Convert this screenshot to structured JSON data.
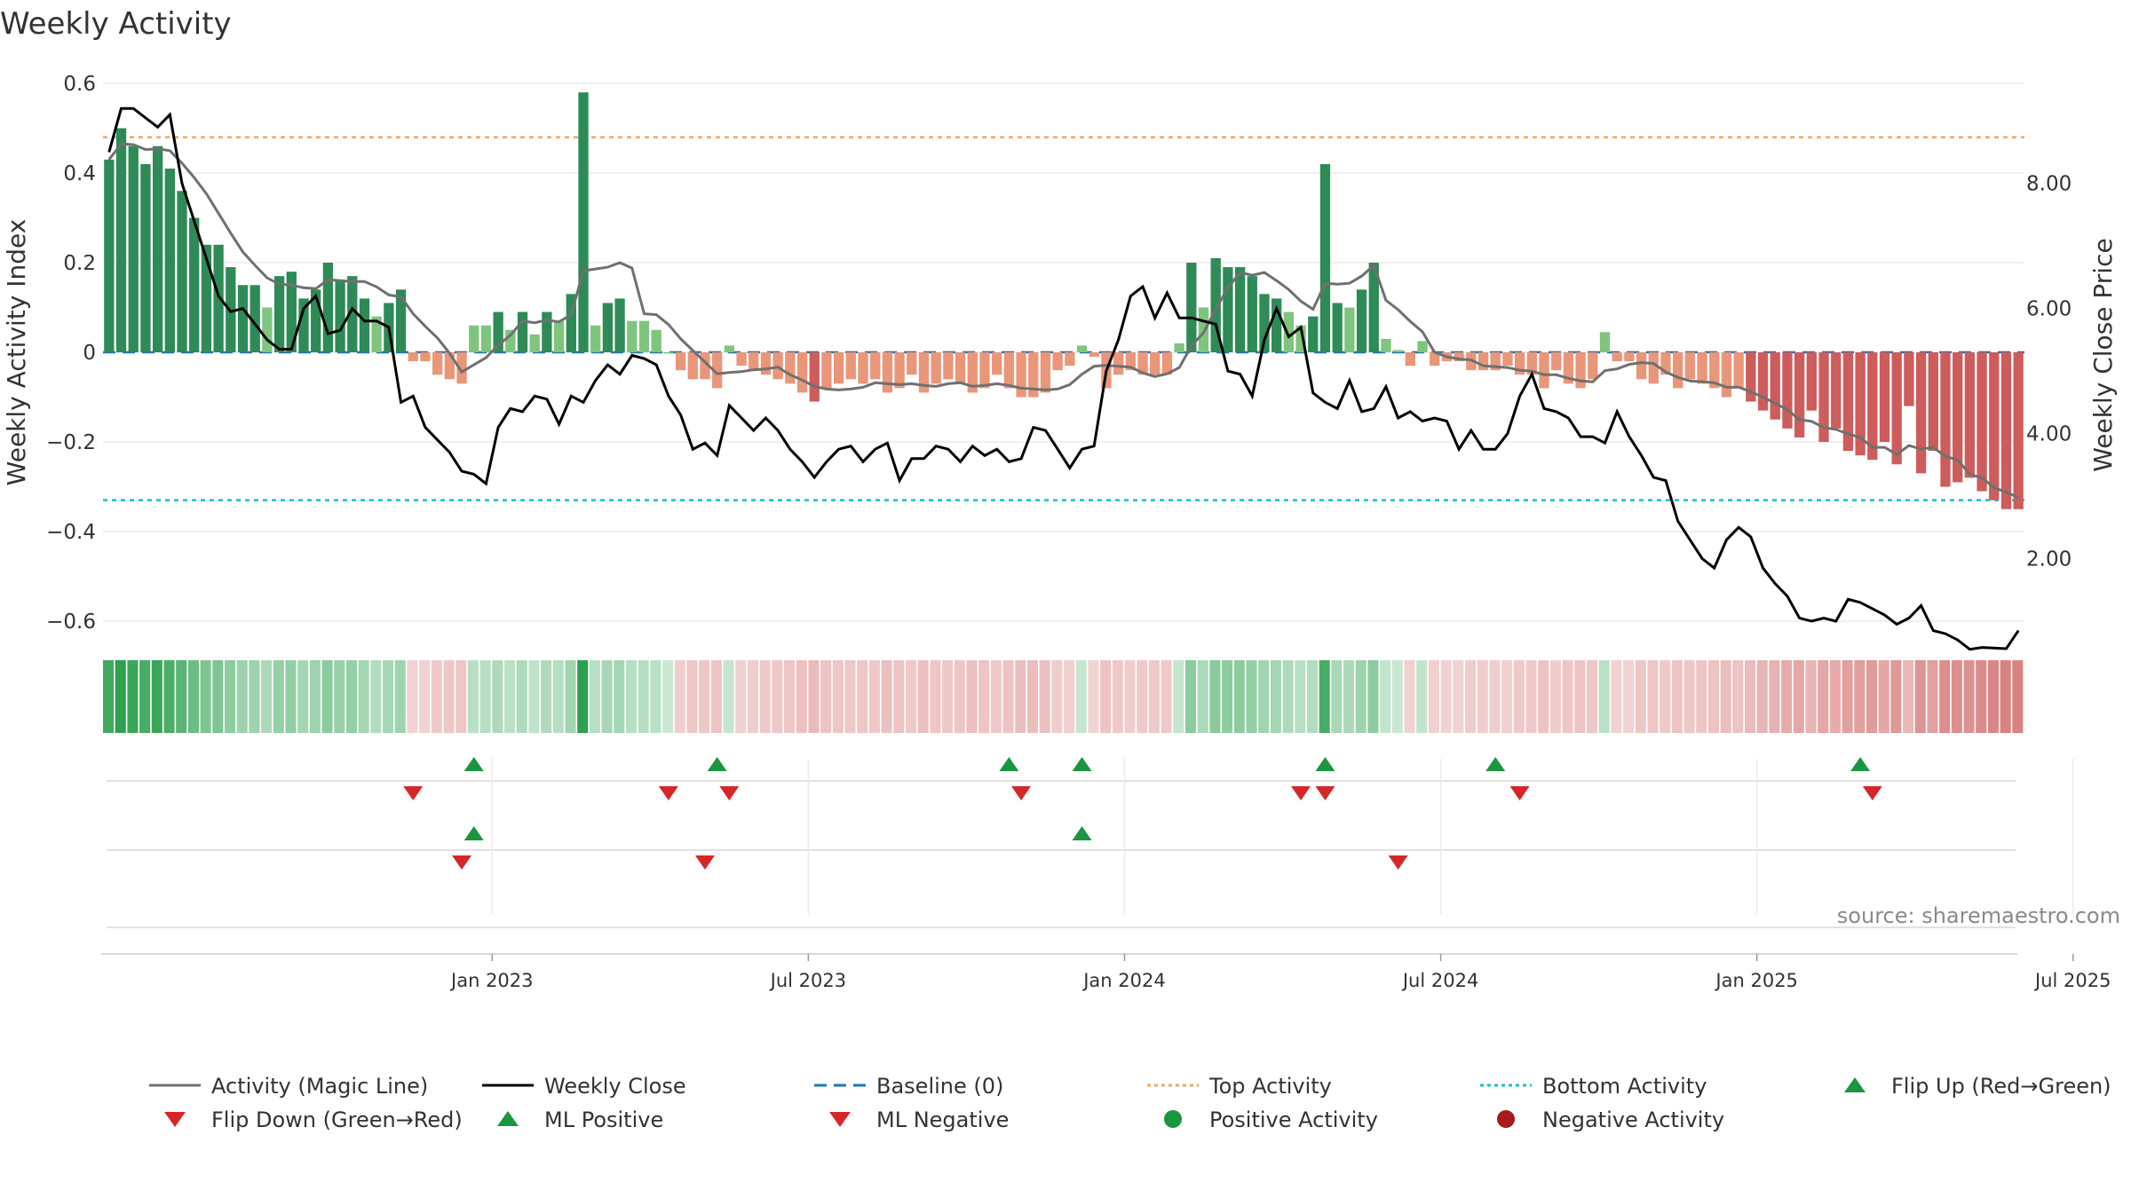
{
  "title": "Weekly Activity",
  "source": "source: sharemaestro.com",
  "colors": {
    "pos_strong": "#2e8b57",
    "pos_light": "#7fc47f",
    "neg_strong": "#cd5c5c",
    "neg_light": "#e9967a",
    "magic_line": "#707070",
    "close_line": "#000000",
    "baseline": "#1f77b4",
    "top_line": "#f4a460",
    "bottom_line": "#17becf",
    "flip_up": "#1a9641",
    "flip_down": "#d62728"
  },
  "chart_data": {
    "type": "bar",
    "title": "Weekly Activity",
    "ylabel_left": "Weekly Activity Index",
    "ylabel_right": "Weekly Close Price",
    "ylim_left": [
      -0.6,
      0.6
    ],
    "ylim_right": [
      1.0,
      9.6
    ],
    "yticks_left": [
      "0.6",
      "0.4",
      "0.2",
      "0",
      "−0.2",
      "−0.4",
      "−0.6"
    ],
    "yticks_left_values": [
      0.6,
      0.4,
      0.2,
      0,
      -0.2,
      -0.4,
      -0.6
    ],
    "yticks_right": [
      "8.00",
      "6.00",
      "4.00",
      "2.00"
    ],
    "yticks_right_values": [
      8,
      6,
      4,
      2
    ],
    "x_start_week_offset": -31.5,
    "weeks": 158,
    "xticks": [
      {
        "label": "Jan 2023",
        "week": 0
      },
      {
        "label": "Jul 2023",
        "week": 26
      },
      {
        "label": "Jan 2024",
        "week": 52
      },
      {
        "label": "Jul 2024",
        "week": 78
      },
      {
        "label": "Jan 2025",
        "week": 104
      },
      {
        "label": "Jul 2025",
        "week": 130
      }
    ],
    "top_activity": 0.48,
    "bottom_activity": -0.33,
    "baseline": 0,
    "activity_anchors": [
      [
        0,
        0.43
      ],
      [
        1,
        0.5
      ],
      [
        2,
        0.46
      ],
      [
        3,
        0.42
      ],
      [
        4,
        0.46
      ],
      [
        5,
        0.41
      ],
      [
        6,
        0.36
      ],
      [
        7,
        0.3
      ],
      [
        8,
        0.24
      ],
      [
        9,
        0.24
      ],
      [
        10,
        0.19
      ],
      [
        11,
        0.15
      ],
      [
        12,
        0.15
      ],
      [
        13,
        0.1
      ],
      [
        14,
        0.17
      ],
      [
        15,
        0.18
      ],
      [
        16,
        0.12
      ],
      [
        17,
        0.14
      ],
      [
        18,
        0.2
      ],
      [
        19,
        0.16
      ],
      [
        20,
        0.17
      ],
      [
        21,
        0.12
      ],
      [
        22,
        0.08
      ],
      [
        23,
        0.11
      ],
      [
        24,
        0.14
      ],
      [
        25,
        -0.02
      ],
      [
        26,
        -0.02
      ],
      [
        27,
        -0.05
      ],
      [
        28,
        -0.06
      ],
      [
        29,
        -0.07
      ],
      [
        30,
        0.06
      ],
      [
        31,
        0.06
      ],
      [
        32,
        0.09
      ],
      [
        33,
        0.05
      ],
      [
        34,
        0.09
      ],
      [
        35,
        0.04
      ],
      [
        36,
        0.09
      ],
      [
        37,
        0.07
      ],
      [
        38,
        0.13
      ],
      [
        39,
        0.58
      ],
      [
        40,
        0.06
      ],
      [
        41,
        0.11
      ],
      [
        42,
        0.12
      ],
      [
        43,
        0.07
      ],
      [
        44,
        0.07
      ],
      [
        45,
        0.05
      ],
      [
        46,
        0.0
      ],
      [
        47,
        -0.04
      ],
      [
        48,
        -0.06
      ],
      [
        49,
        -0.06
      ],
      [
        50,
        -0.08
      ],
      [
        51,
        0.015
      ],
      [
        52,
        -0.03
      ],
      [
        53,
        -0.04
      ],
      [
        54,
        -0.05
      ],
      [
        55,
        -0.06
      ],
      [
        56,
        -0.07
      ],
      [
        57,
        -0.09
      ],
      [
        58,
        -0.11
      ],
      [
        59,
        -0.08
      ],
      [
        60,
        -0.07
      ],
      [
        61,
        -0.06
      ],
      [
        62,
        -0.07
      ],
      [
        63,
        -0.06
      ],
      [
        64,
        -0.09
      ],
      [
        65,
        -0.08
      ],
      [
        66,
        -0.05
      ],
      [
        67,
        -0.09
      ],
      [
        68,
        -0.07
      ],
      [
        69,
        -0.06
      ],
      [
        70,
        -0.07
      ],
      [
        71,
        -0.09
      ],
      [
        72,
        -0.08
      ],
      [
        73,
        -0.05
      ],
      [
        74,
        -0.08
      ],
      [
        75,
        -0.1
      ],
      [
        76,
        -0.1
      ],
      [
        77,
        -0.09
      ],
      [
        78,
        -0.04
      ],
      [
        79,
        -0.03
      ],
      [
        80,
        0.015
      ],
      [
        81,
        -0.01
      ],
      [
        82,
        -0.08
      ],
      [
        83,
        -0.05
      ],
      [
        84,
        -0.04
      ],
      [
        85,
        -0.05
      ],
      [
        86,
        -0.05
      ],
      [
        87,
        -0.05
      ],
      [
        88,
        0.02
      ],
      [
        89,
        0.2
      ],
      [
        90,
        0.1
      ],
      [
        91,
        0.21
      ],
      [
        92,
        0.19
      ],
      [
        93,
        0.19
      ],
      [
        94,
        0.17
      ],
      [
        95,
        0.13
      ],
      [
        96,
        0.12
      ],
      [
        97,
        0.09
      ],
      [
        98,
        0.06
      ],
      [
        99,
        0.08
      ],
      [
        100,
        0.42
      ],
      [
        101,
        0.11
      ],
      [
        102,
        0.1
      ],
      [
        103,
        0.14
      ],
      [
        104,
        0.2
      ],
      [
        105,
        0.03
      ],
      [
        106,
        0.005
      ],
      [
        107,
        -0.03
      ],
      [
        108,
        0.025
      ],
      [
        109,
        -0.03
      ],
      [
        110,
        -0.02
      ],
      [
        111,
        -0.02
      ],
      [
        112,
        -0.04
      ],
      [
        113,
        -0.04
      ],
      [
        114,
        -0.04
      ],
      [
        115,
        -0.03
      ],
      [
        116,
        -0.05
      ],
      [
        117,
        -0.05
      ],
      [
        118,
        -0.08
      ],
      [
        119,
        -0.04
      ],
      [
        120,
        -0.07
      ],
      [
        121,
        -0.08
      ],
      [
        122,
        -0.06
      ],
      [
        123,
        0.045
      ],
      [
        124,
        -0.02
      ],
      [
        125,
        -0.02
      ],
      [
        126,
        -0.06
      ],
      [
        127,
        -0.07
      ],
      [
        128,
        -0.05
      ],
      [
        129,
        -0.08
      ],
      [
        130,
        -0.06
      ],
      [
        131,
        -0.07
      ],
      [
        132,
        -0.08
      ],
      [
        133,
        -0.1
      ],
      [
        134,
        -0.08
      ],
      [
        135,
        -0.11
      ],
      [
        136,
        -0.13
      ],
      [
        137,
        -0.15
      ],
      [
        138,
        -0.17
      ],
      [
        139,
        -0.19
      ],
      [
        140,
        -0.13
      ],
      [
        141,
        -0.2
      ],
      [
        142,
        -0.17
      ],
      [
        143,
        -0.22
      ],
      [
        144,
        -0.23
      ],
      [
        145,
        -0.24
      ],
      [
        146,
        -0.2
      ],
      [
        147,
        -0.25
      ],
      [
        148,
        -0.12
      ],
      [
        149,
        -0.27
      ],
      [
        150,
        -0.22
      ],
      [
        151,
        -0.3
      ],
      [
        152,
        -0.29
      ],
      [
        153,
        -0.28
      ],
      [
        154,
        -0.31
      ],
      [
        155,
        -0.33
      ],
      [
        156,
        -0.35
      ],
      [
        157,
        -0.35
      ]
    ],
    "close_anchors": [
      [
        0,
        8.5
      ],
      [
        1,
        9.2
      ],
      [
        2,
        9.2
      ],
      [
        4,
        8.9
      ],
      [
        5,
        9.1
      ],
      [
        6,
        8.0
      ],
      [
        8,
        6.8
      ],
      [
        9,
        6.2
      ],
      [
        10,
        5.95
      ],
      [
        11,
        6.0
      ],
      [
        12,
        5.75
      ],
      [
        13,
        5.5
      ],
      [
        14,
        5.35
      ],
      [
        15,
        5.35
      ],
      [
        16,
        6.0
      ],
      [
        17,
        6.2
      ],
      [
        18,
        5.6
      ],
      [
        19,
        5.65
      ],
      [
        20,
        6.0
      ],
      [
        21,
        5.8
      ],
      [
        22,
        5.8
      ],
      [
        23,
        5.7
      ],
      [
        24,
        4.5
      ],
      [
        25,
        4.6
      ],
      [
        26,
        4.1
      ],
      [
        27,
        3.9
      ],
      [
        28,
        3.7
      ],
      [
        29,
        3.4
      ],
      [
        30,
        3.35
      ],
      [
        31,
        3.2
      ],
      [
        32,
        4.1
      ],
      [
        33,
        4.4
      ],
      [
        34,
        4.35
      ],
      [
        35,
        4.6
      ],
      [
        36,
        4.55
      ],
      [
        37,
        4.15
      ],
      [
        38,
        4.6
      ],
      [
        39,
        4.5
      ],
      [
        40,
        4.85
      ],
      [
        41,
        5.1
      ],
      [
        42,
        4.95
      ],
      [
        43,
        5.25
      ],
      [
        44,
        5.2
      ],
      [
        45,
        5.1
      ],
      [
        46,
        4.6
      ],
      [
        47,
        4.3
      ],
      [
        48,
        3.75
      ],
      [
        49,
        3.85
      ],
      [
        50,
        3.65
      ],
      [
        51,
        4.45
      ],
      [
        52,
        4.25
      ],
      [
        53,
        4.05
      ],
      [
        54,
        4.25
      ],
      [
        55,
        4.05
      ],
      [
        56,
        3.75
      ],
      [
        57,
        3.55
      ],
      [
        58,
        3.3
      ],
      [
        59,
        3.55
      ],
      [
        60,
        3.75
      ],
      [
        61,
        3.8
      ],
      [
        62,
        3.55
      ],
      [
        63,
        3.75
      ],
      [
        64,
        3.85
      ],
      [
        65,
        3.25
      ],
      [
        66,
        3.6
      ],
      [
        67,
        3.6
      ],
      [
        68,
        3.8
      ],
      [
        69,
        3.75
      ],
      [
        70,
        3.55
      ],
      [
        71,
        3.8
      ],
      [
        72,
        3.65
      ],
      [
        73,
        3.75
      ],
      [
        74,
        3.55
      ],
      [
        75,
        3.6
      ],
      [
        76,
        4.1
      ],
      [
        77,
        4.05
      ],
      [
        78,
        3.75
      ],
      [
        79,
        3.45
      ],
      [
        80,
        3.75
      ],
      [
        81,
        3.8
      ],
      [
        82,
        5.0
      ],
      [
        83,
        5.5
      ],
      [
        84,
        6.2
      ],
      [
        85,
        6.35
      ],
      [
        86,
        5.85
      ],
      [
        87,
        6.25
      ],
      [
        88,
        5.85
      ],
      [
        89,
        5.85
      ],
      [
        90,
        5.8
      ],
      [
        91,
        5.75
      ],
      [
        92,
        5.0
      ],
      [
        93,
        4.95
      ],
      [
        94,
        4.6
      ],
      [
        95,
        5.5
      ],
      [
        96,
        6.0
      ],
      [
        97,
        5.55
      ],
      [
        98,
        5.7
      ],
      [
        99,
        4.65
      ],
      [
        100,
        4.5
      ],
      [
        101,
        4.4
      ],
      [
        102,
        4.85
      ],
      [
        103,
        4.35
      ],
      [
        104,
        4.4
      ],
      [
        105,
        4.75
      ],
      [
        106,
        4.25
      ],
      [
        107,
        4.35
      ],
      [
        108,
        4.2
      ],
      [
        109,
        4.25
      ],
      [
        110,
        4.2
      ],
      [
        111,
        3.75
      ],
      [
        112,
        4.05
      ],
      [
        113,
        3.75
      ],
      [
        114,
        3.75
      ],
      [
        115,
        4.0
      ],
      [
        116,
        4.6
      ],
      [
        117,
        4.95
      ],
      [
        118,
        4.4
      ],
      [
        119,
        4.35
      ],
      [
        120,
        4.25
      ],
      [
        121,
        3.95
      ],
      [
        122,
        3.95
      ],
      [
        123,
        3.85
      ],
      [
        124,
        4.35
      ],
      [
        125,
        3.95
      ],
      [
        126,
        3.65
      ],
      [
        127,
        3.3
      ],
      [
        128,
        3.25
      ],
      [
        129,
        2.6
      ],
      [
        130,
        2.3
      ],
      [
        131,
        2.0
      ],
      [
        132,
        1.85
      ],
      [
        133,
        2.3
      ],
      [
        134,
        2.5
      ],
      [
        135,
        2.35
      ],
      [
        136,
        1.85
      ],
      [
        137,
        1.6
      ],
      [
        138,
        1.4
      ],
      [
        139,
        1.05
      ],
      [
        140,
        1.0
      ],
      [
        141,
        1.05
      ],
      [
        142,
        1.0
      ],
      [
        143,
        1.35
      ],
      [
        144,
        1.3
      ],
      [
        145,
        1.2
      ],
      [
        146,
        1.1
      ],
      [
        147,
        0.95
      ],
      [
        148,
        1.05
      ],
      [
        149,
        1.25
      ],
      [
        150,
        0.85
      ],
      [
        151,
        0.8
      ],
      [
        152,
        0.7
      ],
      [
        153,
        0.55
      ],
      [
        154,
        0.58
      ],
      [
        155,
        0.57
      ],
      [
        156,
        0.56
      ],
      [
        157,
        0.85
      ]
    ],
    "flip_up_weeks": [
      30,
      50,
      74,
      80,
      100,
      114,
      144
    ],
    "flip_down_weeks": [
      25,
      46,
      51,
      75,
      98,
      100,
      116,
      145
    ],
    "ml_positive_weeks": [
      30,
      80
    ],
    "ml_negative_weeks": [
      29,
      49,
      106
    ]
  },
  "legend": [
    {
      "label": "Activity (Magic Line)",
      "kind": "line",
      "color": "#707070",
      "dash": "none"
    },
    {
      "label": "Weekly Close",
      "kind": "line",
      "color": "#000000",
      "dash": "none"
    },
    {
      "label": "Baseline (0)",
      "kind": "line",
      "color": "#1f77b4",
      "dash": "14,8"
    },
    {
      "label": "Top Activity",
      "kind": "line",
      "color": "#f4a460",
      "dash": "4,4"
    },
    {
      "label": "Bottom Activity",
      "kind": "line",
      "color": "#17becf",
      "dash": "4,4"
    },
    {
      "label": "Flip Up (Red→Green)",
      "kind": "tri-up",
      "color": "#1a9641"
    },
    {
      "label": "Flip Down (Green→Red)",
      "kind": "tri-down",
      "color": "#d62728"
    },
    {
      "label": "ML Positive",
      "kind": "tri-up",
      "color": "#1a9641"
    },
    {
      "label": "ML Negative",
      "kind": "tri-down",
      "color": "#d62728"
    },
    {
      "label": "Positive Activity",
      "kind": "dot",
      "color": "#1a9641"
    },
    {
      "label": "Negative Activity",
      "kind": "dot",
      "color": "#a61c1c"
    }
  ]
}
